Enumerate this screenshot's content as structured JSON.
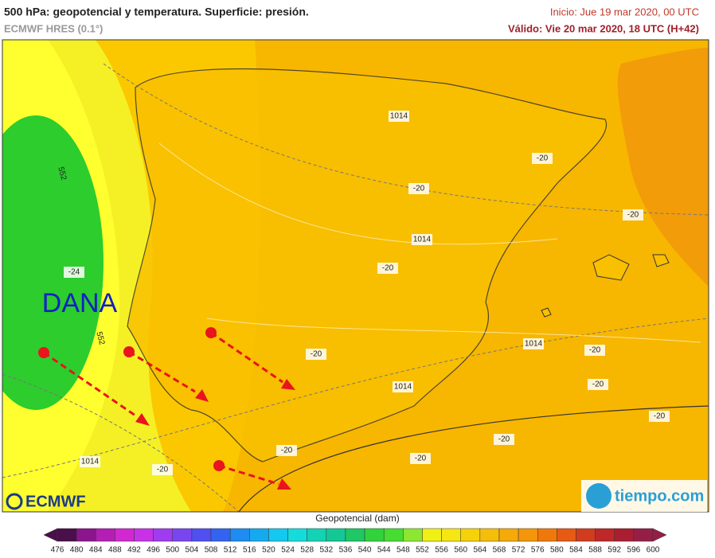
{
  "header": {
    "title": "500 hPa: geopotencial y temperatura. Superficie: presión.",
    "model": "ECMWF HRES (0.1°)",
    "init": "Inicio: Jue 19 mar 2020, 00 UTC",
    "valid": "Válido: Vie 20 mar 2020, 18 UTC (H+42)"
  },
  "map": {
    "annotation": "DANA",
    "labels": [
      "1014",
      "1014",
      "1014",
      "1014",
      "1014",
      "-20",
      "-20",
      "-20",
      "-20",
      "-20",
      "-20",
      "-20",
      "-20",
      "-20",
      "-20",
      "-20",
      "-20",
      "-24",
      "552",
      "552"
    ]
  },
  "logos": {
    "left": "ECMWF",
    "right": "tiempo.com"
  },
  "colorbar": {
    "title": "Geopotencial (dam)",
    "ticks": [
      476,
      480,
      484,
      488,
      492,
      496,
      500,
      504,
      508,
      512,
      516,
      520,
      524,
      528,
      532,
      536,
      540,
      544,
      548,
      552,
      556,
      560,
      564,
      568,
      572,
      576,
      580,
      584,
      588,
      592,
      596,
      600
    ],
    "colors": [
      "#4b0f4b",
      "#8c148c",
      "#b41eb4",
      "#d228d2",
      "#c832e6",
      "#a03cf0",
      "#7846f0",
      "#5050f0",
      "#3264f0",
      "#1e8cf0",
      "#14aaf0",
      "#14c8f0",
      "#14dcdc",
      "#14d2b4",
      "#14c896",
      "#1ec864",
      "#32d23c",
      "#46dc32",
      "#8ce632",
      "#f0f014",
      "#f5e614",
      "#f5d20a",
      "#f5be0a",
      "#f5aa0a",
      "#f5960a",
      "#f0780a",
      "#e65a14",
      "#d23c1e",
      "#be2828",
      "#aa1e32",
      "#961e46"
    ]
  }
}
